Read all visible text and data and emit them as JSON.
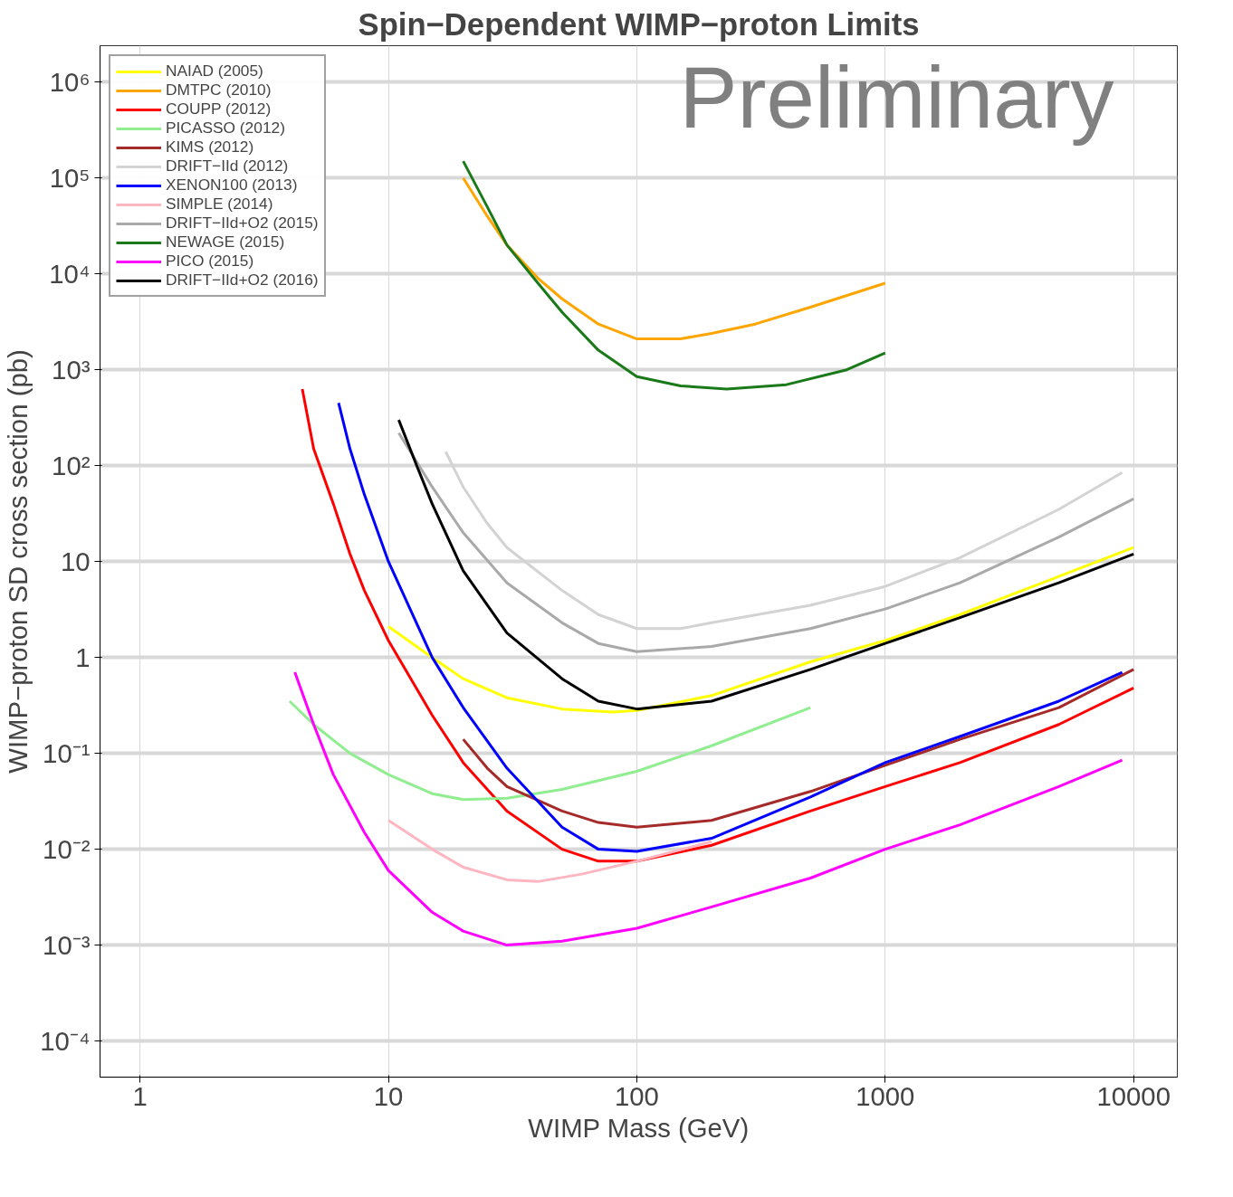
{
  "chart_data": {
    "type": "line",
    "title": "Spin−Dependent WIMP−proton Limits",
    "xlabel": "WIMP Mass (GeV)",
    "ylabel": "WIMP−proton SD cross section (pb)",
    "log": "xy",
    "grid": true,
    "legend": "top left",
    "marker": "none",
    "line_style": "solid",
    "xlim": [
      0.69,
      15000
    ],
    "ylim": [
      4.2e-05,
      2400000
    ],
    "xticks": [
      1,
      10,
      100,
      1000,
      10000
    ],
    "yticks": [
      {
        "value": 0.0001,
        "label": "10⁻⁴"
      },
      {
        "value": 0.001,
        "label": "10⁻³"
      },
      {
        "value": 0.01,
        "label": "10⁻²"
      },
      {
        "value": 0.1,
        "label": "10⁻¹"
      },
      1,
      10,
      {
        "value": 100,
        "label": "10²"
      },
      {
        "value": 1000,
        "label": "10³"
      },
      {
        "value": 10000,
        "label": "10⁴"
      },
      {
        "value": 100000,
        "label": "10⁵"
      },
      {
        "value": 1000000,
        "label": "10⁶"
      }
    ],
    "annotations": [
      "Preliminary"
    ],
    "series": [
      {
        "name": "NAIAD (2005)",
        "color": "#ffff00",
        "x": [
          10,
          15,
          20,
          30,
          50,
          80,
          100,
          200,
          500,
          1000,
          2000,
          5000,
          10000
        ],
        "values": [
          2.1,
          1.0,
          0.6,
          0.38,
          0.29,
          0.27,
          0.28,
          0.4,
          0.9,
          1.5,
          2.8,
          7,
          14
        ]
      },
      {
        "name": "DMTPC (2010)",
        "color": "#ffa500",
        "x": [
          20,
          25,
          30,
          40,
          50,
          70,
          100,
          150,
          200,
          300,
          500,
          1000
        ],
        "values": [
          100000,
          40000,
          20000,
          9000,
          5500,
          3000,
          2100,
          2100,
          2400,
          3000,
          4500,
          8000
        ]
      },
      {
        "name": "COUPP (2012)",
        "color": "#ff0000",
        "x": [
          4.5,
          5,
          6,
          7,
          8,
          10,
          15,
          20,
          30,
          50,
          70,
          100,
          200,
          500,
          1000,
          2000,
          5000,
          10000
        ],
        "values": [
          630,
          150,
          40,
          12,
          5,
          1.5,
          0.25,
          0.08,
          0.025,
          0.01,
          0.0075,
          0.0075,
          0.011,
          0.025,
          0.045,
          0.08,
          0.2,
          0.48
        ]
      },
      {
        "name": "PICASSO (2012)",
        "color": "#90ee90",
        "x": [
          4,
          5,
          7,
          10,
          15,
          20,
          30,
          50,
          100,
          200,
          500
        ],
        "values": [
          0.35,
          0.2,
          0.1,
          0.06,
          0.038,
          0.033,
          0.034,
          0.042,
          0.065,
          0.12,
          0.3
        ]
      },
      {
        "name": "KIMS (2012)",
        "color": "#a52a2a",
        "x": [
          20,
          25,
          30,
          50,
          70,
          100,
          200,
          500,
          1000,
          2000,
          5000,
          10000
        ],
        "values": [
          0.14,
          0.07,
          0.045,
          0.025,
          0.019,
          0.017,
          0.02,
          0.04,
          0.075,
          0.14,
          0.3,
          0.75
        ]
      },
      {
        "name": "DRIFT−IId (2012)",
        "color": "#d3d3d3",
        "x": [
          17,
          20,
          25,
          30,
          50,
          70,
          100,
          150,
          200,
          500,
          1000,
          2000,
          5000,
          9000
        ],
        "values": [
          140,
          60,
          25,
          14,
          5,
          2.8,
          2.0,
          2.0,
          2.3,
          3.5,
          5.5,
          11,
          35,
          85
        ]
      },
      {
        "name": "XENON100 (2013)",
        "color": "#0000ff",
        "x": [
          6.3,
          7,
          8,
          10,
          15,
          20,
          30,
          50,
          70,
          100,
          200,
          500,
          1000,
          2000,
          5000,
          9000
        ],
        "values": [
          450,
          150,
          50,
          10,
          1,
          0.3,
          0.07,
          0.017,
          0.01,
          0.0095,
          0.013,
          0.035,
          0.08,
          0.15,
          0.35,
          0.7
        ]
      },
      {
        "name": "SIMPLE (2014)",
        "color": "#ffb6c1",
        "x": [
          10,
          15,
          20,
          30,
          40,
          60,
          100,
          200
        ],
        "values": [
          0.02,
          0.01,
          0.0065,
          0.0048,
          0.0046,
          0.0055,
          0.0075,
          0.012
        ]
      },
      {
        "name": "DRIFT−IId+O2 (2015)",
        "color": "#a9a9a9",
        "x": [
          11,
          15,
          20,
          30,
          50,
          70,
          100,
          200,
          500,
          1000,
          2000,
          5000,
          10000
        ],
        "values": [
          220,
          60,
          20,
          6,
          2.3,
          1.4,
          1.15,
          1.3,
          2.0,
          3.2,
          6,
          18,
          45
        ]
      },
      {
        "name": "NEWAGE (2015)",
        "color": "#1a7a1a",
        "x": [
          20,
          25,
          30,
          40,
          50,
          70,
          100,
          150,
          230,
          400,
          700,
          1000
        ],
        "values": [
          150000,
          50000,
          20000,
          8000,
          4000,
          1600,
          850,
          680,
          630,
          700,
          1000,
          1500
        ]
      },
      {
        "name": "PICO (2015)",
        "color": "#ff00ff",
        "x": [
          4.2,
          5,
          6,
          8,
          10,
          15,
          20,
          30,
          50,
          100,
          200,
          500,
          1000,
          2000,
          5000,
          9000
        ],
        "values": [
          0.7,
          0.2,
          0.06,
          0.015,
          0.006,
          0.0022,
          0.0014,
          0.001,
          0.0011,
          0.0015,
          0.0025,
          0.005,
          0.01,
          0.018,
          0.045,
          0.085
        ]
      },
      {
        "name": "DRIFT−IId+O2 (2016)",
        "color": "#000000",
        "x": [
          11,
          13,
          15,
          20,
          30,
          50,
          70,
          100,
          200,
          500,
          1000,
          2000,
          5000,
          10000
        ],
        "values": [
          300,
          100,
          40,
          8,
          1.8,
          0.6,
          0.35,
          0.29,
          0.35,
          0.75,
          1.4,
          2.6,
          6,
          12
        ]
      }
    ]
  }
}
